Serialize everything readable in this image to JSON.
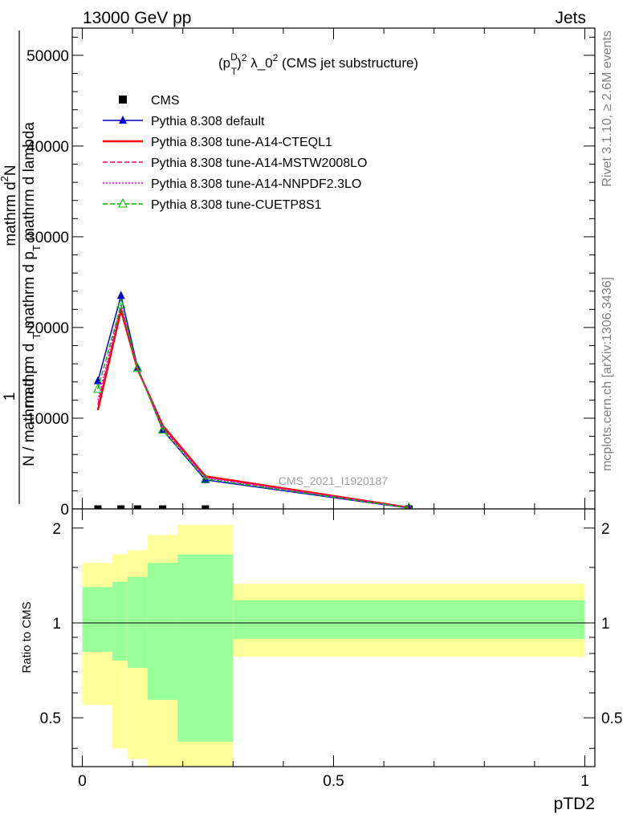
{
  "header": {
    "left": "13000 GeV pp",
    "right": "Jets"
  },
  "side_labels": {
    "rivet": "Rivet 3.1.10, ≥ 2.6M events",
    "mcplots": "mcplots.cern.ch [arXiv:1306.3436]"
  },
  "top_panel": {
    "title_parts": [
      "(p",
      "D",
      "T",
      ")",
      "2",
      " λ_0",
      "2",
      " (CMS jet substructure)"
    ],
    "ylabel": {
      "num_one": "1",
      "num": "mathrm d",
      "num_sup": "2",
      "num_end": "N",
      "den_a": "mathrm d",
      "den_b": "N / mathrm d p",
      "den_sub": "T",
      "den_c": " mathrm d p",
      "den_sub2": "T",
      "den_d": " mathrm d lambda"
    },
    "watermark": "CMS_2021_I1920187",
    "yticks": [
      "0",
      "10000",
      "20000",
      "30000",
      "40000",
      "50000"
    ]
  },
  "bottom_panel": {
    "ylabel": "Ratio to CMS",
    "xlabel": "pTD2",
    "yticks": [
      "0.5",
      "1",
      "2"
    ],
    "xticks": [
      "0",
      "0.5",
      "1"
    ]
  },
  "legend": [
    {
      "label": "CMS",
      "color": "#000000",
      "marker": "square",
      "line": "none"
    },
    {
      "label": "Pythia 8.308 default",
      "color": "#0000cc",
      "marker": "triangle",
      "line": "solid"
    },
    {
      "label": "Pythia 8.308 tune-A14-CTEQL1",
      "color": "#ff0000",
      "marker": "none",
      "line": "solid-thick"
    },
    {
      "label": "Pythia 8.308 tune-A14-MSTW2008LO",
      "color": "#ff0066",
      "marker": "none",
      "line": "dashed"
    },
    {
      "label": "Pythia 8.308 tune-A14-NNPDF2.3LO",
      "color": "#ff00ff",
      "marker": "none",
      "line": "dotted"
    },
    {
      "label": "Pythia 8.308 tune-CUETP8S1",
      "color": "#00bb00",
      "marker": "open-triangle",
      "line": "dashed"
    }
  ],
  "chart_data": {
    "type": "line",
    "x": [
      0.031,
      0.077,
      0.11,
      0.16,
      0.245,
      0.65
    ],
    "xlim": [
      -0.02,
      1.02
    ],
    "ylim": [
      0,
      53000
    ],
    "ratio_ylim": [
      0.35,
      2.3
    ],
    "series": [
      {
        "name": "CMS",
        "values": [
          0,
          0,
          0,
          0,
          0,
          0
        ]
      },
      {
        "name": "Pythia 8.308 default",
        "values": [
          14100,
          23500,
          15600,
          8700,
          3200,
          100
        ]
      },
      {
        "name": "Pythia 8.308 tune-A14-CTEQL1",
        "values": [
          10900,
          21900,
          15400,
          9200,
          3600,
          150
        ]
      },
      {
        "name": "Pythia 8.308 tune-A14-MSTW2008LO",
        "values": [
          11500,
          22200,
          15500,
          9000,
          3500,
          140
        ]
      },
      {
        "name": "Pythia 8.308 tune-A14-NNPDF2.3LO",
        "values": [
          12000,
          22600,
          15500,
          8900,
          3400,
          130
        ]
      },
      {
        "name": "Pythia 8.308 tune-CUETP8S1",
        "values": [
          13200,
          22500,
          15500,
          8700,
          3300,
          120
        ]
      }
    ],
    "ratio_bands": [
      {
        "x0": 0.0,
        "x1": 0.06,
        "yellow": [
          0.55,
          1.55
        ],
        "green": [
          0.81,
          1.3
        ]
      },
      {
        "x0": 0.06,
        "x1": 0.09,
        "yellow": [
          0.4,
          1.65
        ],
        "green": [
          0.76,
          1.35
        ]
      },
      {
        "x0": 0.09,
        "x1": 0.13,
        "yellow": [
          0.37,
          1.7
        ],
        "green": [
          0.72,
          1.4
        ]
      },
      {
        "x0": 0.13,
        "x1": 0.19,
        "yellow": [
          0.2,
          1.9
        ],
        "green": [
          0.57,
          1.55
        ]
      },
      {
        "x0": 0.19,
        "x1": 0.3,
        "yellow": [
          0.3,
          2.05
        ],
        "green": [
          0.42,
          1.65
        ]
      },
      {
        "x0": 0.3,
        "x1": 1.0,
        "yellow": [
          0.78,
          1.33
        ],
        "green": [
          0.89,
          1.18
        ]
      }
    ],
    "colors": {
      "yellow_band": "#ffff99",
      "green_band": "#99ff99"
    }
  }
}
